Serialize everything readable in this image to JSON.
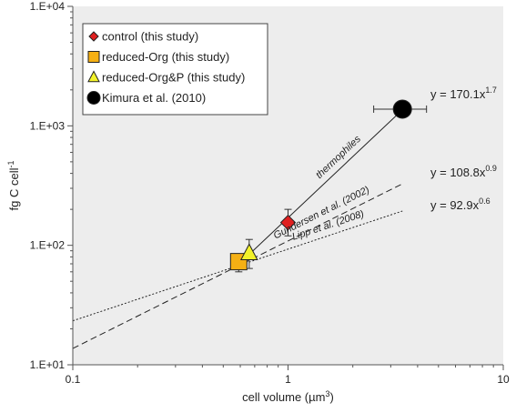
{
  "chart_data": {
    "type": "scatter",
    "title": "",
    "xlabel": "cell volume (µm",
    "xlabel_sup": "3",
    "xlabel_suffix": ")",
    "ylabel": "fg C cell",
    "ylabel_sup": "-1",
    "x_scale": "log",
    "y_scale": "log",
    "xlim": [
      0.1,
      10
    ],
    "ylim": [
      10,
      10000
    ],
    "x_ticks": [
      {
        "value": 0.1,
        "label": "0.1"
      },
      {
        "value": 1,
        "label": "1"
      },
      {
        "value": 10,
        "label": "10"
      }
    ],
    "y_ticks": [
      {
        "value": 10,
        "label": "1.E+01"
      },
      {
        "value": 100,
        "label": "1.E+02"
      },
      {
        "value": 1000,
        "label": "1.E+03"
      },
      {
        "value": 10000,
        "label": "1.E+04"
      }
    ],
    "grid": false,
    "plot_background": "#ededed",
    "legend_position": "top-left",
    "series": [
      {
        "name": "control (this study)",
        "marker": "diamond",
        "color": "#e02020",
        "points": [
          {
            "x": 1.0,
            "y": 155,
            "y_err_low": 120,
            "y_err_high": 200
          }
        ]
      },
      {
        "name": "reduced-Org (this study)",
        "marker": "square",
        "color": "#f5b014",
        "points": [
          {
            "x": 0.59,
            "y": 73,
            "y_err_low": 60,
            "y_err_high": 82
          }
        ]
      },
      {
        "name": "reduced-Org&P (this study)",
        "marker": "triangle",
        "color": "#f2f22a",
        "points": [
          {
            "x": 0.66,
            "y": 86,
            "y_err_low": 64,
            "y_err_high": 112
          }
        ]
      },
      {
        "name": "Kimura et al. (2010)",
        "marker": "circle",
        "color": "#000000",
        "points": [
          {
            "x": 3.4,
            "y": 1380,
            "x_err_low": 2.5,
            "x_err_high": 4.4
          }
        ]
      }
    ],
    "fit_lines": [
      {
        "label": "thermophiles",
        "coef": 170.1,
        "exp": 1.7,
        "x_range": [
          0.59,
          3.4
        ],
        "style": "solid",
        "eq_text": "y = 170.1x",
        "eq_sup": "1.7"
      },
      {
        "label": "Gundersen et al. (2002)",
        "coef": 108.8,
        "exp": 0.9,
        "x_range": [
          0.1,
          3.4
        ],
        "style": "dashed",
        "eq_text": "y = 108.8x",
        "eq_sup": "0.9"
      },
      {
        "label": "Lipp et al. (2008)",
        "coef": 92.9,
        "exp": 0.6,
        "x_range": [
          0.1,
          3.4
        ],
        "style": "dotted",
        "eq_text": "y = 92.9x",
        "eq_sup": "0.6"
      }
    ]
  }
}
